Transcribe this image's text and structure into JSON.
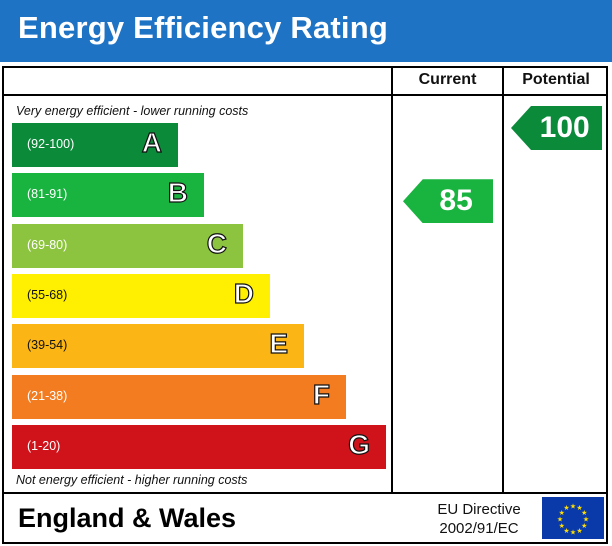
{
  "header": {
    "title": "Energy Efficiency Rating"
  },
  "columns": {
    "current": "Current",
    "potential": "Potential"
  },
  "notes": {
    "top": "Very energy efficient - lower running costs",
    "bottom": "Not energy efficient - higher running costs"
  },
  "chart_data": {
    "type": "bar",
    "bands": [
      {
        "letter": "A",
        "range": "(92-100)",
        "color": "#0b8a3a"
      },
      {
        "letter": "B",
        "range": "(81-91)",
        "color": "#19b33f"
      },
      {
        "letter": "C",
        "range": "(69-80)",
        "color": "#8cc43f"
      },
      {
        "letter": "D",
        "range": "(55-68)",
        "color": "#ffef00"
      },
      {
        "letter": "E",
        "range": "(39-54)",
        "color": "#fbb616"
      },
      {
        "letter": "F",
        "range": "(21-38)",
        "color": "#f37b20"
      },
      {
        "letter": "G",
        "range": "(1-20)",
        "color": "#d0121b"
      }
    ],
    "current": {
      "value": 85,
      "band": "B",
      "color": "#19b33f"
    },
    "potential": {
      "value": 100,
      "band": "A",
      "color": "#0b8a3a"
    }
  },
  "footer": {
    "region": "England & Wales",
    "directive_line1": "EU Directive",
    "directive_line2": "2002/91/EC"
  }
}
